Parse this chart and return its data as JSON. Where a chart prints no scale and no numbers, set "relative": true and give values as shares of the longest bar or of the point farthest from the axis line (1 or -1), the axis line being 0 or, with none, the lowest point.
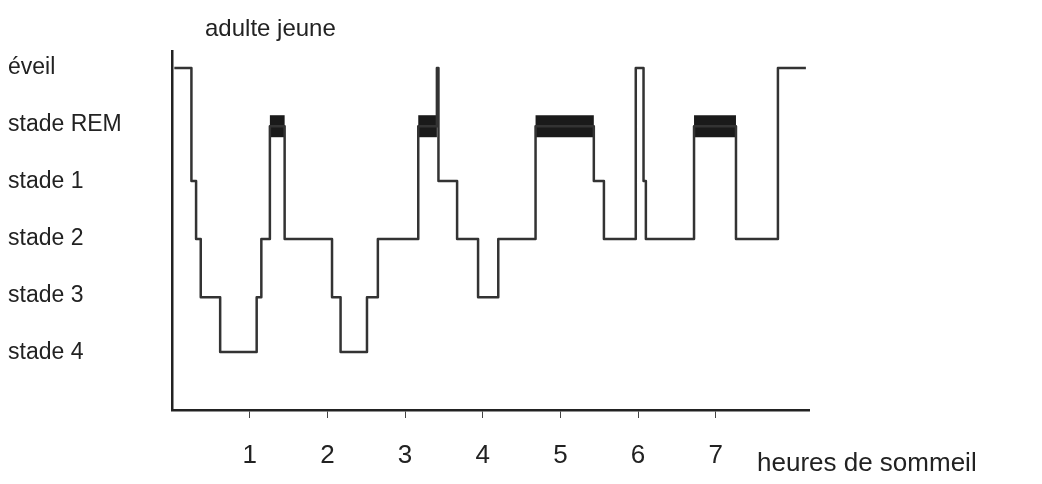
{
  "chart_data": {
    "type": "step",
    "title": "adulte jeune",
    "xlabel": "heures de sommeil",
    "xlim": [
      0,
      8.2
    ],
    "xticks": [
      1,
      2,
      3,
      4,
      5,
      6,
      7
    ],
    "relative": true,
    "annotations": [
      "stade 4",
      "stade 3",
      "stade 2",
      "stade 1",
      "stade REM",
      "éveil"
    ],
    "grid": false,
    "legend": false,
    "marker": "none",
    "series": [
      {
        "color": "#333333",
        "x": [
          0.03,
          0.25,
          0.31,
          0.37,
          0.62,
          1.09,
          1.15,
          1.26,
          1.45,
          2.06,
          2.17,
          2.51,
          2.65,
          3.17,
          3.41,
          3.43,
          3.67,
          3.94,
          4.2,
          4.68,
          5.43,
          5.56,
          5.97,
          6.07,
          6.1,
          6.72,
          7.26,
          7.8,
          8.16
        ],
        "values": [
          1,
          0.67,
          0.5,
          0.33,
          0.17,
          0.33,
          0.5,
          0.83,
          0.5,
          0.33,
          0.17,
          0.33,
          0.5,
          0.83,
          1,
          0.67,
          0.5,
          0.33,
          0.5,
          0.83,
          0.67,
          0.5,
          1,
          0.67,
          0.5,
          0.83,
          0.5,
          1,
          1
        ]
      },
      {
        "color": "#1a1a1a",
        "x": [
          1.26,
          1.45
        ],
        "values": [
          0.83,
          0.83
        ]
      },
      {
        "color": "#1a1a1a",
        "x": [
          3.17,
          3.41
        ],
        "values": [
          0.83,
          0.83
        ]
      },
      {
        "color": "#1a1a1a",
        "x": [
          4.68,
          5.43
        ],
        "values": [
          0.83,
          0.83
        ]
      },
      {
        "color": "#1a1a1a",
        "x": [
          6.72,
          7.26
        ],
        "values": [
          0.83,
          0.83
        ]
      }
    ]
  }
}
